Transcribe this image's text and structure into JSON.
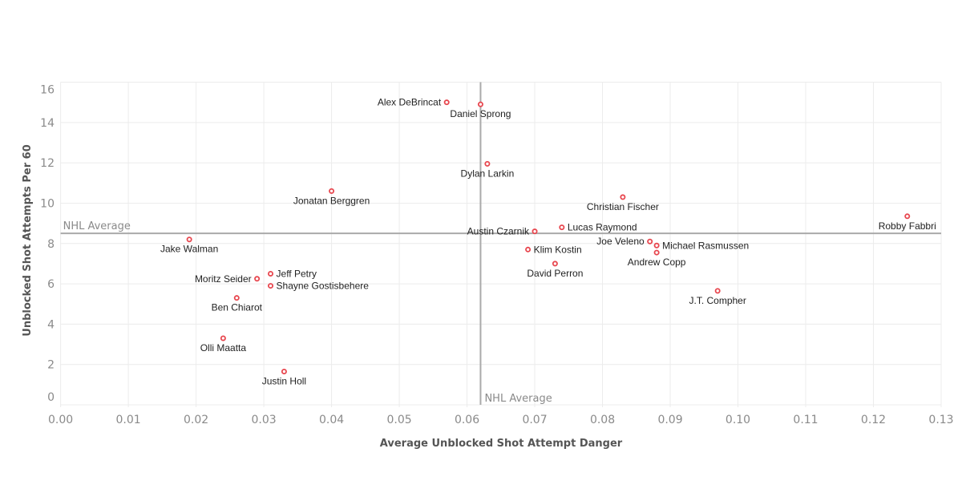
{
  "chart_data": {
    "type": "scatter",
    "xlabel": "Average Unblocked Shot Attempt Danger",
    "ylabel": "Unblocked Shot Attempts Per 60",
    "xlim": [
      0,
      0.13
    ],
    "ylim": [
      0,
      16
    ],
    "x_ticks": [
      "0.00",
      "0.01",
      "0.02",
      "0.03",
      "0.04",
      "0.05",
      "0.06",
      "0.07",
      "0.08",
      "0.09",
      "0.10",
      "0.11",
      "0.12",
      "0.13"
    ],
    "y_ticks": [
      "0",
      "2",
      "4",
      "6",
      "8",
      "10",
      "12",
      "14",
      "16"
    ],
    "grid": true,
    "marker_color": "#e8474f",
    "reference_lines": [
      {
        "axis": "x",
        "value": 0.062,
        "label": "NHL Average"
      },
      {
        "axis": "y",
        "value": 8.5,
        "label": "NHL Average"
      }
    ],
    "points": [
      {
        "label": "Alex DeBrincat",
        "x": 0.057,
        "y": 15.0
      },
      {
        "label": "Daniel Sprong",
        "x": 0.062,
        "y": 14.9
      },
      {
        "label": "Dylan Larkin",
        "x": 0.063,
        "y": 11.95
      },
      {
        "label": "Jonatan Berggren",
        "x": 0.04,
        "y": 10.6
      },
      {
        "label": "Christian Fischer",
        "x": 0.083,
        "y": 10.3
      },
      {
        "label": "Robby Fabbri",
        "x": 0.125,
        "y": 9.35
      },
      {
        "label": "Austin Czarnik",
        "x": 0.07,
        "y": 8.6
      },
      {
        "label": "Lucas Raymond",
        "x": 0.074,
        "y": 8.8
      },
      {
        "label": "Jake Walman",
        "x": 0.019,
        "y": 8.2
      },
      {
        "label": "Joe Veleno",
        "x": 0.087,
        "y": 8.1
      },
      {
        "label": "Michael Rasmussen",
        "x": 0.088,
        "y": 7.9
      },
      {
        "label": "Andrew Copp",
        "x": 0.088,
        "y": 7.55
      },
      {
        "label": "Klim Kostin",
        "x": 0.069,
        "y": 7.7
      },
      {
        "label": "David Perron",
        "x": 0.073,
        "y": 7.0
      },
      {
        "label": "Jeff Petry",
        "x": 0.031,
        "y": 6.5
      },
      {
        "label": "Moritz Seider",
        "x": 0.029,
        "y": 6.25
      },
      {
        "label": "Shayne Gostisbehere",
        "x": 0.031,
        "y": 5.9
      },
      {
        "label": "Ben Chiarot",
        "x": 0.026,
        "y": 5.3
      },
      {
        "label": "J.T. Compher",
        "x": 0.097,
        "y": 5.65
      },
      {
        "label": "Olli Maatta",
        "x": 0.024,
        "y": 3.3
      },
      {
        "label": "Justin Holl",
        "x": 0.033,
        "y": 1.65
      }
    ]
  }
}
